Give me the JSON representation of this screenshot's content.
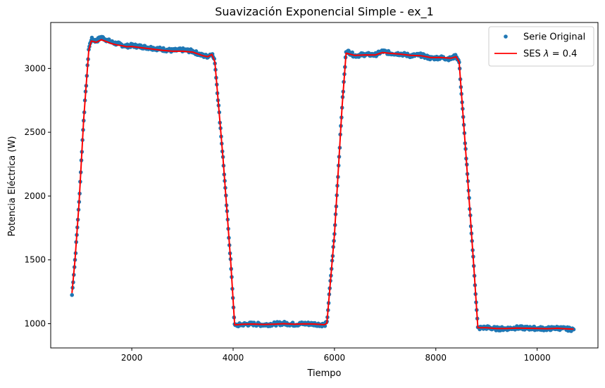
{
  "chart_data": {
    "type": "line",
    "title": "Suavización Exponencial Simple - ex_1",
    "xlabel": "Tiempo",
    "ylabel": "Potencia Eléctrica (W)",
    "xlim": [
      400,
      11200
    ],
    "ylim": [
      810,
      3360
    ],
    "xticks": [
      2000,
      4000,
      6000,
      8000,
      10000
    ],
    "yticks": [
      1000,
      1500,
      2000,
      2500,
      3000
    ],
    "grid": false,
    "legend_position": "top-right",
    "series": [
      {
        "name": "Serie Original",
        "style": "scatter",
        "color": "#1f77b4",
        "x": [
          820,
          880,
          960,
          1050,
          1150,
          1200,
          1300,
          1400,
          1500,
          1600,
          1700,
          1800,
          1900,
          2000,
          2200,
          2400,
          2600,
          2800,
          3000,
          3200,
          3400,
          3500,
          3580,
          3640,
          3800,
          3950,
          4030,
          4200,
          4400,
          4600,
          4800,
          5000,
          5200,
          5400,
          5600,
          5800,
          5850,
          6000,
          6150,
          6230,
          6400,
          6600,
          6800,
          6950,
          7100,
          7300,
          7500,
          7700,
          7900,
          8100,
          8300,
          8400,
          8460,
          8600,
          8750,
          8830,
          9000,
          9200,
          9400,
          9600,
          9800,
          10000,
          10200,
          10400,
          10600,
          10720
        ],
        "y": [
          1225,
          1500,
          1950,
          2600,
          3150,
          3230,
          3215,
          3245,
          3225,
          3205,
          3195,
          3185,
          3175,
          3180,
          3170,
          3160,
          3150,
          3140,
          3145,
          3135,
          3100,
          3095,
          3120,
          3050,
          2300,
          1500,
          985,
          995,
          998,
          992,
          997,
          1003,
          995,
          1000,
          998,
          990,
          1005,
          1700,
          2700,
          3140,
          3100,
          3110,
          3105,
          3135,
          3120,
          3115,
          3100,
          3105,
          3080,
          3085,
          3075,
          3100,
          3050,
          2300,
          1450,
          965,
          970,
          960,
          962,
          968,
          965,
          963,
          960,
          966,
          958,
          955
        ]
      },
      {
        "name": "SES λ = 0.4",
        "legend_prefix": "SES ",
        "legend_symbol": "λ",
        "legend_suffix": " = 0.4",
        "style": "line",
        "color": "#ff0000",
        "x": [
          820,
          880,
          960,
          1050,
          1150,
          1200,
          1300,
          1400,
          1500,
          1600,
          1700,
          1800,
          1900,
          2000,
          2200,
          2400,
          2600,
          2800,
          3000,
          3200,
          3400,
          3500,
          3580,
          3640,
          3800,
          3950,
          4030,
          4200,
          4400,
          4600,
          4800,
          5000,
          5200,
          5400,
          5600,
          5800,
          5850,
          6000,
          6150,
          6230,
          6400,
          6600,
          6800,
          6950,
          7100,
          7300,
          7500,
          7700,
          7900,
          8100,
          8300,
          8400,
          8460,
          8600,
          8750,
          8830,
          9000,
          9200,
          9400,
          9600,
          9800,
          10000,
          10200,
          10400,
          10600,
          10720
        ],
        "y": [
          1240,
          1500,
          1950,
          2600,
          3140,
          3215,
          3205,
          3225,
          3210,
          3195,
          3185,
          3178,
          3170,
          3172,
          3162,
          3152,
          3142,
          3135,
          3135,
          3128,
          3100,
          3092,
          3110,
          3050,
          2300,
          1500,
          990,
          996,
          997,
          994,
          996,
          1000,
          996,
          999,
          997,
          992,
          1003,
          1700,
          2700,
          3120,
          3102,
          3106,
          3105,
          3125,
          3118,
          3112,
          3102,
          3100,
          3085,
          3086,
          3080,
          3092,
          3050,
          2300,
          1450,
          968,
          968,
          962,
          962,
          966,
          964,
          963,
          961,
          964,
          959,
          957
        ]
      }
    ]
  }
}
